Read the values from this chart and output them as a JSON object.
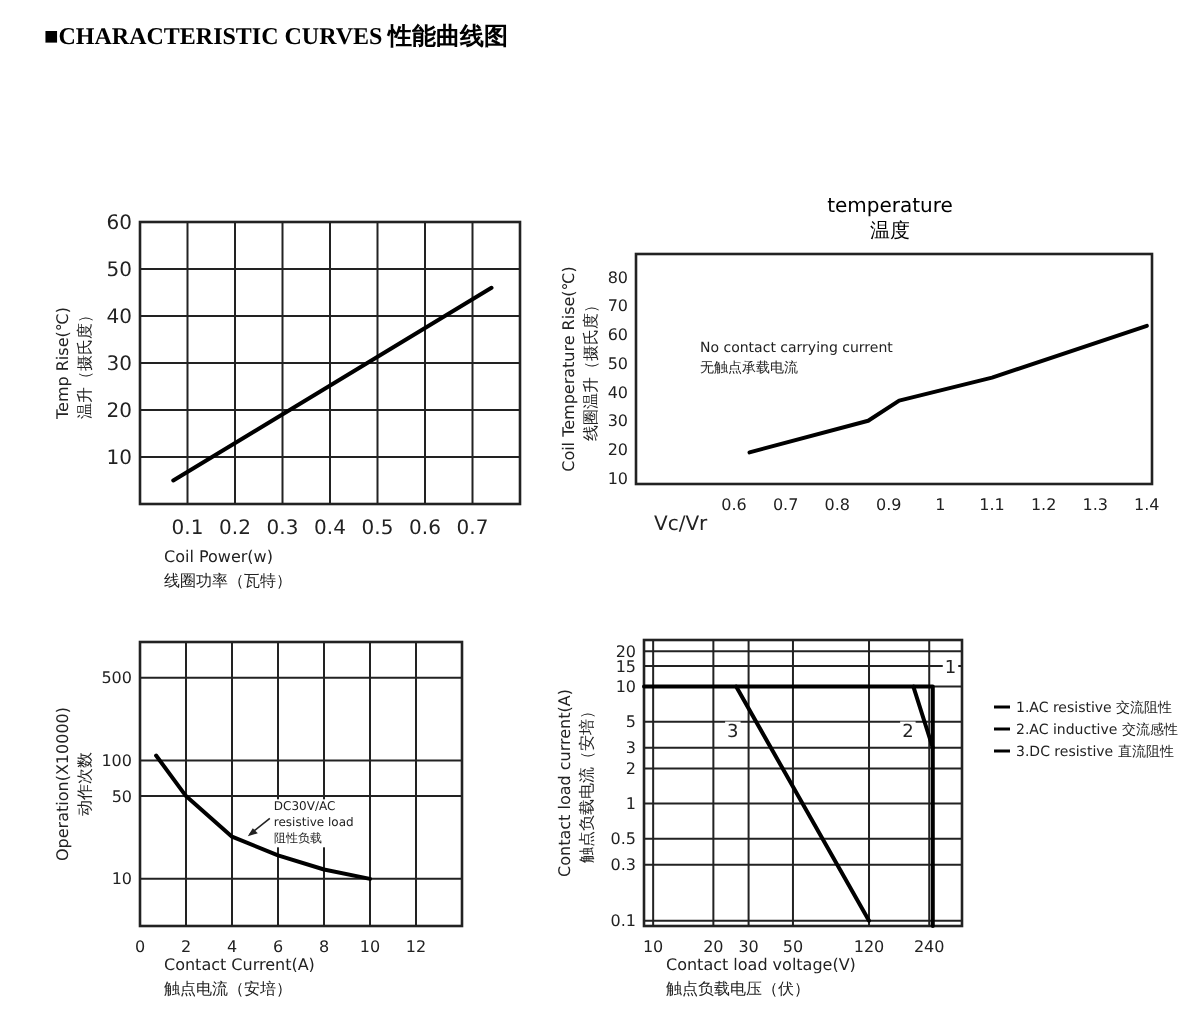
{
  "chart_data": [
    {
      "type": "line",
      "title": "■CHARACTERISTIC CURVES 性能曲线图",
      "xlabel": "Coil Power(w)\n线圈功率（瓦特）",
      "ylabel": "Temp Rise(℃)\n温升（摄氏度）",
      "xlim": [
        0,
        0.8
      ],
      "ylim": [
        0,
        60
      ],
      "xticks": [
        0.1,
        0.2,
        0.3,
        0.4,
        0.5,
        0.6,
        0.7
      ],
      "yticks": [
        10,
        20,
        30,
        40,
        50,
        60
      ],
      "grid": true,
      "series": [
        {
          "color": "#000000",
          "x": [
            0.07,
            0.74
          ],
          "values": [
            5,
            46
          ]
        }
      ]
    },
    {
      "type": "line",
      "title": "temperature\n温度",
      "xlabel": "Vc/Vr",
      "ylabel": "Coil Temperature Rise(℃)\n线圈温升（摄氏度）",
      "xlim": [
        0.41,
        1.41
      ],
      "ylim": [
        8,
        88
      ],
      "xticks": [
        0.6,
        0.7,
        0.8,
        0.9,
        1,
        1.1,
        1.2,
        1.3,
        1.4
      ],
      "yticks": [
        10,
        20,
        30,
        40,
        50,
        60,
        70,
        80
      ],
      "grid": false,
      "series": [
        {
          "color": "#000000",
          "x": [
            0.63,
            0.86,
            0.92,
            1.1,
            1.4
          ],
          "values": [
            19,
            30,
            37,
            45,
            63
          ]
        }
      ],
      "annotations": [
        "No contact carrying current\n无触点承载电流"
      ]
    },
    {
      "type": "line",
      "xlabel": "Contact Current(A)\n触点电流（安培）",
      "ylabel": "Operation(X10000)\n动作次数",
      "xlim": [
        0,
        14
      ],
      "ylim": [
        4,
        1000
      ],
      "log": "y",
      "xticks": [
        0,
        2,
        4,
        6,
        8,
        10,
        12
      ],
      "yticks": [
        10,
        50,
        100,
        500
      ],
      "grid": true,
      "series": [
        {
          "color": "#000000",
          "x": [
            0.7,
            2,
            4,
            6,
            8,
            10
          ],
          "values": [
            110,
            50,
            22.7,
            15.8,
            12,
            10
          ]
        }
      ],
      "annotations": [
        {
          "text": "DC30V/AC\nresistive load\n阻性负载",
          "x": 4.6,
          "y": 22
        }
      ]
    },
    {
      "type": "line",
      "xlabel": "Contact load voltage(V)\n触点负载电压（伏）",
      "ylabel": "Contact load current(A)\n触点负载电流（安培）",
      "xlim": [
        9,
        350
      ],
      "ylim": [
        0.09,
        25
      ],
      "log": "xy",
      "xticks": [
        10,
        20,
        30,
        50,
        120,
        240
      ],
      "yticks": [
        0.1,
        0.3,
        0.5,
        1,
        2,
        3,
        5,
        10,
        15,
        20
      ],
      "grid": true,
      "legend": "right",
      "series": [
        {
          "name": "1.AC resistive 交流阻性",
          "color": "#000000",
          "x": [
            9,
            250,
            250
          ],
          "values": [
            10,
            10,
            0.09
          ]
        },
        {
          "name": "2.AC inductive 交流感性",
          "color": "#000000",
          "x": [
            200,
            250
          ],
          "values": [
            10,
            3
          ]
        },
        {
          "name": "3.DC resistive 直流阻性",
          "color": "#000000",
          "x": [
            26,
            120
          ],
          "values": [
            10,
            0.1
          ]
        }
      ],
      "annotations": [
        {
          "text": "1",
          "x": 250,
          "y": 10
        },
        {
          "text": "2",
          "x": 225,
          "y": 6
        },
        {
          "text": "3",
          "x": 30,
          "y": 6
        }
      ]
    }
  ]
}
